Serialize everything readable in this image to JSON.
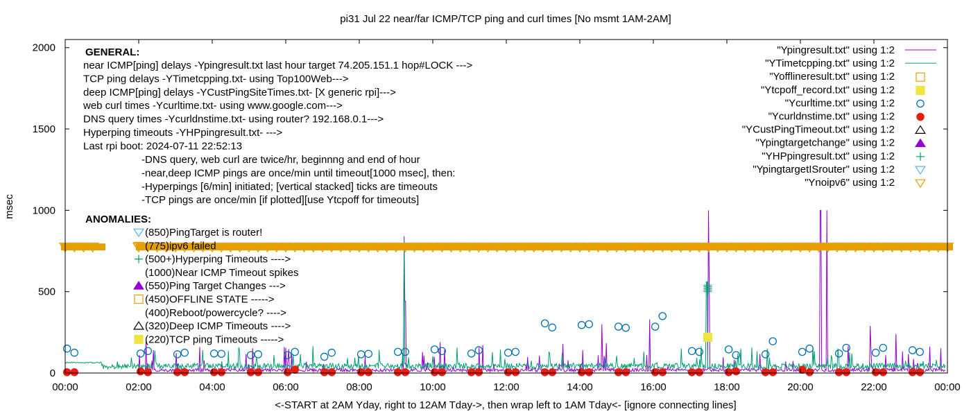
{
  "chart_data": {
    "type": "line",
    "title": "pi31 Jul 22  near/far ICMP/TCP ping and curl times [No msmt 1AM-2AM]",
    "xlabel": "<-START at 2AM Yday, right to 12AM Tday->, then wrap left to 1AM Tday<- [ignore connecting lines]",
    "ylabel": "msec",
    "xlim": [
      0,
      24
    ],
    "ylim": [
      0,
      2050
    ],
    "x_ticks": [
      0,
      2,
      4,
      6,
      8,
      10,
      12,
      14,
      16,
      18,
      20,
      22,
      24
    ],
    "x_tick_labels": [
      "00:00",
      "02:00",
      "04:00",
      "06:00",
      "08:00",
      "10:00",
      "12:00",
      "14:00",
      "16:00",
      "18:00",
      "20:00",
      "22:00",
      "00:00"
    ],
    "y_ticks": [
      0,
      500,
      1000,
      1500,
      2000
    ],
    "y_tick_labels": [
      "0",
      "500",
      "1000",
      "1500",
      "2000"
    ],
    "grid": false,
    "legend_position": "top-right",
    "series": [
      {
        "name": "\"Ypingresult.txt\" using 1:2",
        "style": "line",
        "color": "#9400d3",
        "spikes": [
          [
            9.22,
            840
          ],
          [
            9.25,
            440
          ],
          [
            17.5,
            1000
          ],
          [
            17.52,
            560
          ],
          [
            20.55,
            1000
          ],
          [
            20.72,
            1000
          ],
          [
            14.6,
            300
          ],
          [
            15.9,
            330
          ],
          [
            21.9,
            290
          ],
          [
            22.6,
            240
          ],
          [
            2.2,
            210
          ],
          [
            10.2,
            190
          ]
        ]
      },
      {
        "name": "\"YTimetcpping.txt\" using 1:2",
        "style": "line",
        "color": "#009e73",
        "spikes": [
          [
            9.22,
            820
          ],
          [
            17.45,
            560
          ],
          [
            18.3,
            120
          ],
          [
            19.1,
            150
          ],
          [
            21.4,
            120
          ],
          [
            23.7,
            80
          ]
        ]
      },
      {
        "name": "\"Yofflineresult.txt\" using 1:2",
        "style": "points",
        "marker": "open-square",
        "color": "#e69f00",
        "x": [],
        "y": []
      },
      {
        "name": "\"Ytcpoff_record.txt\" using 1:2",
        "style": "points",
        "marker": "filled-square",
        "color": "#f0e442",
        "x": [
          17.48
        ],
        "y": [
          220
        ]
      },
      {
        "name": "\"Ycurltime.txt\" using 1:2",
        "style": "points",
        "marker": "open-circle",
        "color": "#0072b2",
        "x": [
          0.05,
          0.25,
          2.05,
          2.25,
          3.05,
          3.25,
          4.05,
          4.25,
          5.05,
          5.25,
          6.05,
          6.25,
          7.05,
          7.25,
          8.05,
          8.25,
          9.05,
          9.25,
          10.05,
          10.25,
          11.05,
          11.25,
          12.05,
          12.25,
          13.05,
          13.25,
          14.05,
          14.25,
          15.05,
          15.25,
          16.05,
          16.25,
          17.05,
          17.25,
          18.05,
          18.25,
          19.05,
          19.25,
          20.05,
          20.25,
          21.05,
          21.25,
          22.05,
          22.25,
          23.05,
          23.25
        ],
        "y": [
          150,
          125,
          120,
          135,
          115,
          125,
          120,
          118,
          110,
          115,
          110,
          130,
          100,
          125,
          115,
          118,
          130,
          130,
          145,
          135,
          120,
          140,
          125,
          130,
          305,
          280,
          295,
          300,
          285,
          278,
          285,
          350,
          135,
          130,
          145,
          110,
          115,
          195,
          130,
          150,
          120,
          155,
          125,
          155,
          140,
          130
        ]
      },
      {
        "name": "\"Ycurldnstime.txt\" using 1:2",
        "style": "points",
        "marker": "filled-circle",
        "color": "#e51e10",
        "x": [
          0.05,
          0.25,
          2.05,
          2.25,
          3.05,
          3.25,
          4.05,
          4.25,
          5.05,
          5.25,
          6.05,
          6.25,
          7.05,
          7.25,
          8.05,
          8.25,
          9.05,
          9.25,
          10.05,
          10.25,
          11.05,
          11.25,
          12.05,
          12.25,
          13.05,
          13.25,
          14.05,
          14.25,
          15.05,
          15.25,
          16.05,
          16.25,
          17.05,
          17.25,
          18.05,
          18.25,
          19.05,
          19.25,
          20.05,
          20.25,
          21.05,
          21.25,
          22.05,
          22.25,
          23.05,
          23.25
        ],
        "y": [
          5,
          5,
          10,
          5,
          5,
          5,
          5,
          5,
          5,
          5,
          5,
          20,
          5,
          5,
          5,
          5,
          5,
          5,
          5,
          5,
          5,
          5,
          5,
          5,
          5,
          5,
          5,
          5,
          5,
          5,
          5,
          5,
          5,
          5,
          5,
          10,
          5,
          5,
          20,
          5,
          5,
          5,
          5,
          5,
          5,
          5
        ]
      },
      {
        "name": "\"YCustPingTimeout.txt\" using 1:2",
        "style": "points",
        "marker": "open-triangle",
        "color": "#000000",
        "x": [],
        "y": []
      },
      {
        "name": "\"Ypingtargetchange\" using 1:2",
        "style": "points",
        "marker": "filled-triangle",
        "color": "#9400d3",
        "x": [],
        "y": []
      },
      {
        "name": "\"YHPpingresult.txt\" using 1:2",
        "style": "points",
        "marker": "plus",
        "color": "#009e73",
        "x": [
          17.48,
          17.48,
          17.48,
          17.48,
          17.48
        ],
        "y": [
          510,
          520,
          530,
          540,
          500
        ]
      },
      {
        "name": "\"YpingtargetISrouter\" using 1:2",
        "style": "points",
        "marker": "open-down-triangle",
        "color": "#56b4e9",
        "x": [],
        "y": []
      },
      {
        "name": "\"Ynoipv6\" using 1:2",
        "style": "points",
        "marker": "open-down-triangle",
        "color": "#e69f00",
        "x": [
          0,
          0.25,
          0.5,
          0.75,
          2,
          2.25,
          2.5,
          2.75,
          3,
          3.25,
          3.5,
          3.75,
          4,
          4.25,
          4.5,
          4.75,
          5,
          5.25,
          5.5,
          5.75,
          6,
          6.25,
          6.5,
          6.75,
          7,
          7.25,
          7.5,
          7.75,
          8,
          8.25,
          8.5,
          8.75,
          9,
          9.25,
          9.5,
          9.75,
          10,
          10.25,
          10.5,
          10.75,
          11,
          11.25,
          11.5,
          11.75,
          12,
          12.25,
          12.5,
          12.75,
          13,
          13.25,
          13.5,
          13.75,
          14,
          14.25,
          14.5,
          14.75,
          15,
          15.25,
          15.5,
          15.75,
          16,
          16.25,
          16.5,
          16.75,
          17,
          17.25,
          17.5,
          17.75,
          18,
          18.25,
          18.5,
          18.75,
          19,
          19.25,
          19.5,
          19.75,
          20,
          20.25,
          20.5,
          20.75,
          21,
          21.25,
          21.5,
          21.75,
          22,
          22.25,
          22.5,
          22.75,
          23,
          23.25,
          23.5,
          23.75,
          24
        ],
        "y_constant": 775
      }
    ],
    "annotations": {
      "general_heading": "GENERAL:",
      "general_lines": [
        "near ICMP[ping] delays -Ypingresult.txt last hour target 74.205.151.1 hop#LOCK --->",
        "TCP ping delays -YTimetcpping.txt- using Top100Web--->",
        "deep ICMP[ping] delays -YCustPingSiteTimes.txt- [X generic rpi]--->",
        "web curl times -Ycurltime.txt- using www.google.com--->",
        "DNS query times -Ycurldnstime.txt- using router? 192.168.0.1--->",
        "Hyperping timeouts -YHPpingresult.txt- --->",
        "Last rpi boot: 2024-07-11 22:52:13"
      ],
      "notes": [
        "-DNS query, web curl are twice/hr, beginnng and end of hour",
        "-near,deep ICMP pings are once/min until timeout[1000 msec], then:",
        "  -Hyperpings [6/min] initiated; [vertical stacked] ticks are timeouts",
        "-TCP pings are once/min [if plotted][use Ytcpoff for timeouts]"
      ],
      "anomalies_heading": "ANOMALIES:",
      "anomalies": [
        {
          "marker": "open-down-triangle",
          "color": "#56b4e9",
          "text": "(850)PingTarget is router!"
        },
        {
          "marker": "open-down-triangle",
          "color": "#e69f00",
          "text": "(775)ipv6 failed"
        },
        {
          "marker": "plus",
          "color": "#009e73",
          "text": "(500+)Hyperping Timeouts ---->"
        },
        {
          "marker": "none",
          "color": "#000000",
          "text": "(1000)Near ICMP Timeout spikes"
        },
        {
          "marker": "filled-triangle",
          "color": "#9400d3",
          "text": "(550)Ping Target Changes --->"
        },
        {
          "marker": "open-square",
          "color": "#e69f00",
          "text": "(450)OFFLINE STATE ----->"
        },
        {
          "marker": "none",
          "color": "#000000",
          "text": "(400)Reboot/powercycle? ---->"
        },
        {
          "marker": "open-triangle",
          "color": "#000000",
          "text": "(320)Deep ICMP Timeouts ---->"
        },
        {
          "marker": "filled-square",
          "color": "#f0e442",
          "text": "(220)TCP ping Timeouts ----->"
        }
      ]
    }
  }
}
